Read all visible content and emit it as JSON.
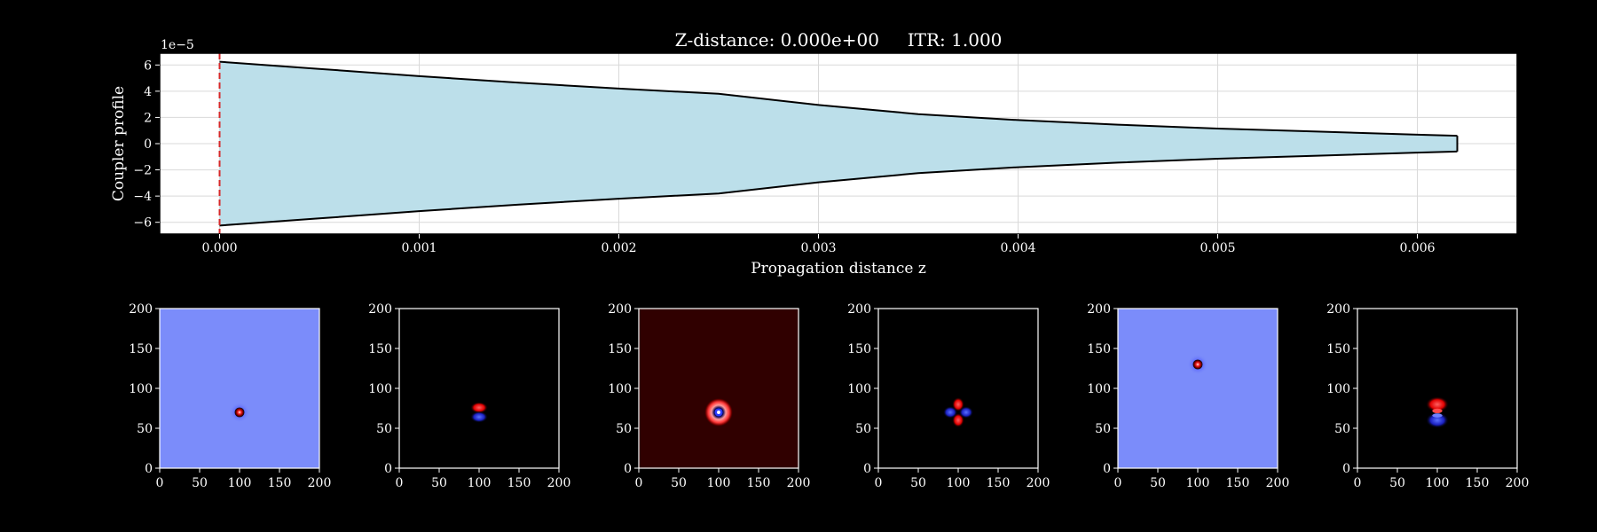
{
  "title": "Z-distance: 0.000e+00     ITR: 1.000",
  "chart_data": [
    {
      "type": "area",
      "title": "",
      "xlabel": "Propagation distance z",
      "ylabel": "Coupler profile",
      "y_scale_label": "1e−5",
      "xlim": [
        -0.0003,
        0.0065
      ],
      "ylim": [
        -6.9,
        6.9
      ],
      "xticks": [
        0.0,
        0.001,
        0.002,
        0.003,
        0.004,
        0.005,
        0.006
      ],
      "xtick_labels": [
        "0.000",
        "0.001",
        "0.002",
        "0.003",
        "0.004",
        "0.005",
        "0.006"
      ],
      "yticks": [
        -6,
        -4,
        -2,
        0,
        2,
        4,
        6
      ],
      "ytick_labels": [
        "−6",
        "−4",
        "−2",
        "0",
        "2",
        "4",
        "6"
      ],
      "grid": true,
      "fill_color": "#bcdfea",
      "marker_line": {
        "x": 0.0,
        "style": "dashed",
        "color": "#d62728"
      },
      "upper": {
        "x": [
          0.0,
          0.0005,
          0.001,
          0.0015,
          0.002,
          0.0025,
          0.003,
          0.0035,
          0.004,
          0.0045,
          0.005,
          0.0055,
          0.006,
          0.0062
        ],
        "y": [
          6.25,
          5.7,
          5.15,
          4.65,
          4.2,
          3.8,
          2.95,
          2.25,
          1.8,
          1.45,
          1.15,
          0.92,
          0.68,
          0.6
        ]
      },
      "lower": {
        "x": [
          0.0,
          0.0005,
          0.001,
          0.0015,
          0.002,
          0.0025,
          0.003,
          0.0035,
          0.004,
          0.0045,
          0.005,
          0.0055,
          0.006,
          0.0062
        ],
        "y": [
          -6.25,
          -5.7,
          -5.15,
          -4.65,
          -4.2,
          -3.8,
          -2.95,
          -2.25,
          -1.8,
          -1.45,
          -1.15,
          -0.92,
          -0.68,
          -0.6
        ]
      }
    },
    {
      "type": "heatmap",
      "xlim": [
        0,
        200
      ],
      "ylim": [
        0,
        200
      ],
      "ticks": [
        0,
        50,
        100,
        150,
        200
      ],
      "background": "#7b8cfa",
      "center": [
        100,
        70
      ],
      "pattern": "spot",
      "radius": 8
    },
    {
      "type": "heatmap",
      "xlim": [
        0,
        200
      ],
      "ylim": [
        0,
        200
      ],
      "ticks": [
        0,
        50,
        100,
        150,
        200
      ],
      "background": "#000000",
      "center": [
        100,
        70
      ],
      "pattern": "dipole-vertical",
      "radius": 13
    },
    {
      "type": "heatmap",
      "xlim": [
        0,
        200
      ],
      "ylim": [
        0,
        200
      ],
      "ticks": [
        0,
        50,
        100,
        150,
        200
      ],
      "background": "#300000",
      "center": [
        100,
        70
      ],
      "pattern": "ring",
      "radius": 18
    },
    {
      "type": "heatmap",
      "xlim": [
        0,
        200
      ],
      "ylim": [
        0,
        200
      ],
      "ticks": [
        0,
        50,
        100,
        150,
        200
      ],
      "background": "#000000",
      "center": [
        100,
        70
      ],
      "pattern": "quadrupole",
      "radius": 18
    },
    {
      "type": "heatmap",
      "xlim": [
        0,
        200
      ],
      "ylim": [
        0,
        200
      ],
      "ticks": [
        0,
        50,
        100,
        150,
        200
      ],
      "background": "#7b8cfa",
      "center": [
        100,
        130
      ],
      "pattern": "spot",
      "radius": 8
    },
    {
      "type": "heatmap",
      "xlim": [
        0,
        200
      ],
      "ylim": [
        0,
        200
      ],
      "ticks": [
        0,
        50,
        100,
        150,
        200
      ],
      "background": "#000000",
      "center": [
        100,
        70
      ],
      "pattern": "ring-dipole",
      "radius": 18
    }
  ]
}
